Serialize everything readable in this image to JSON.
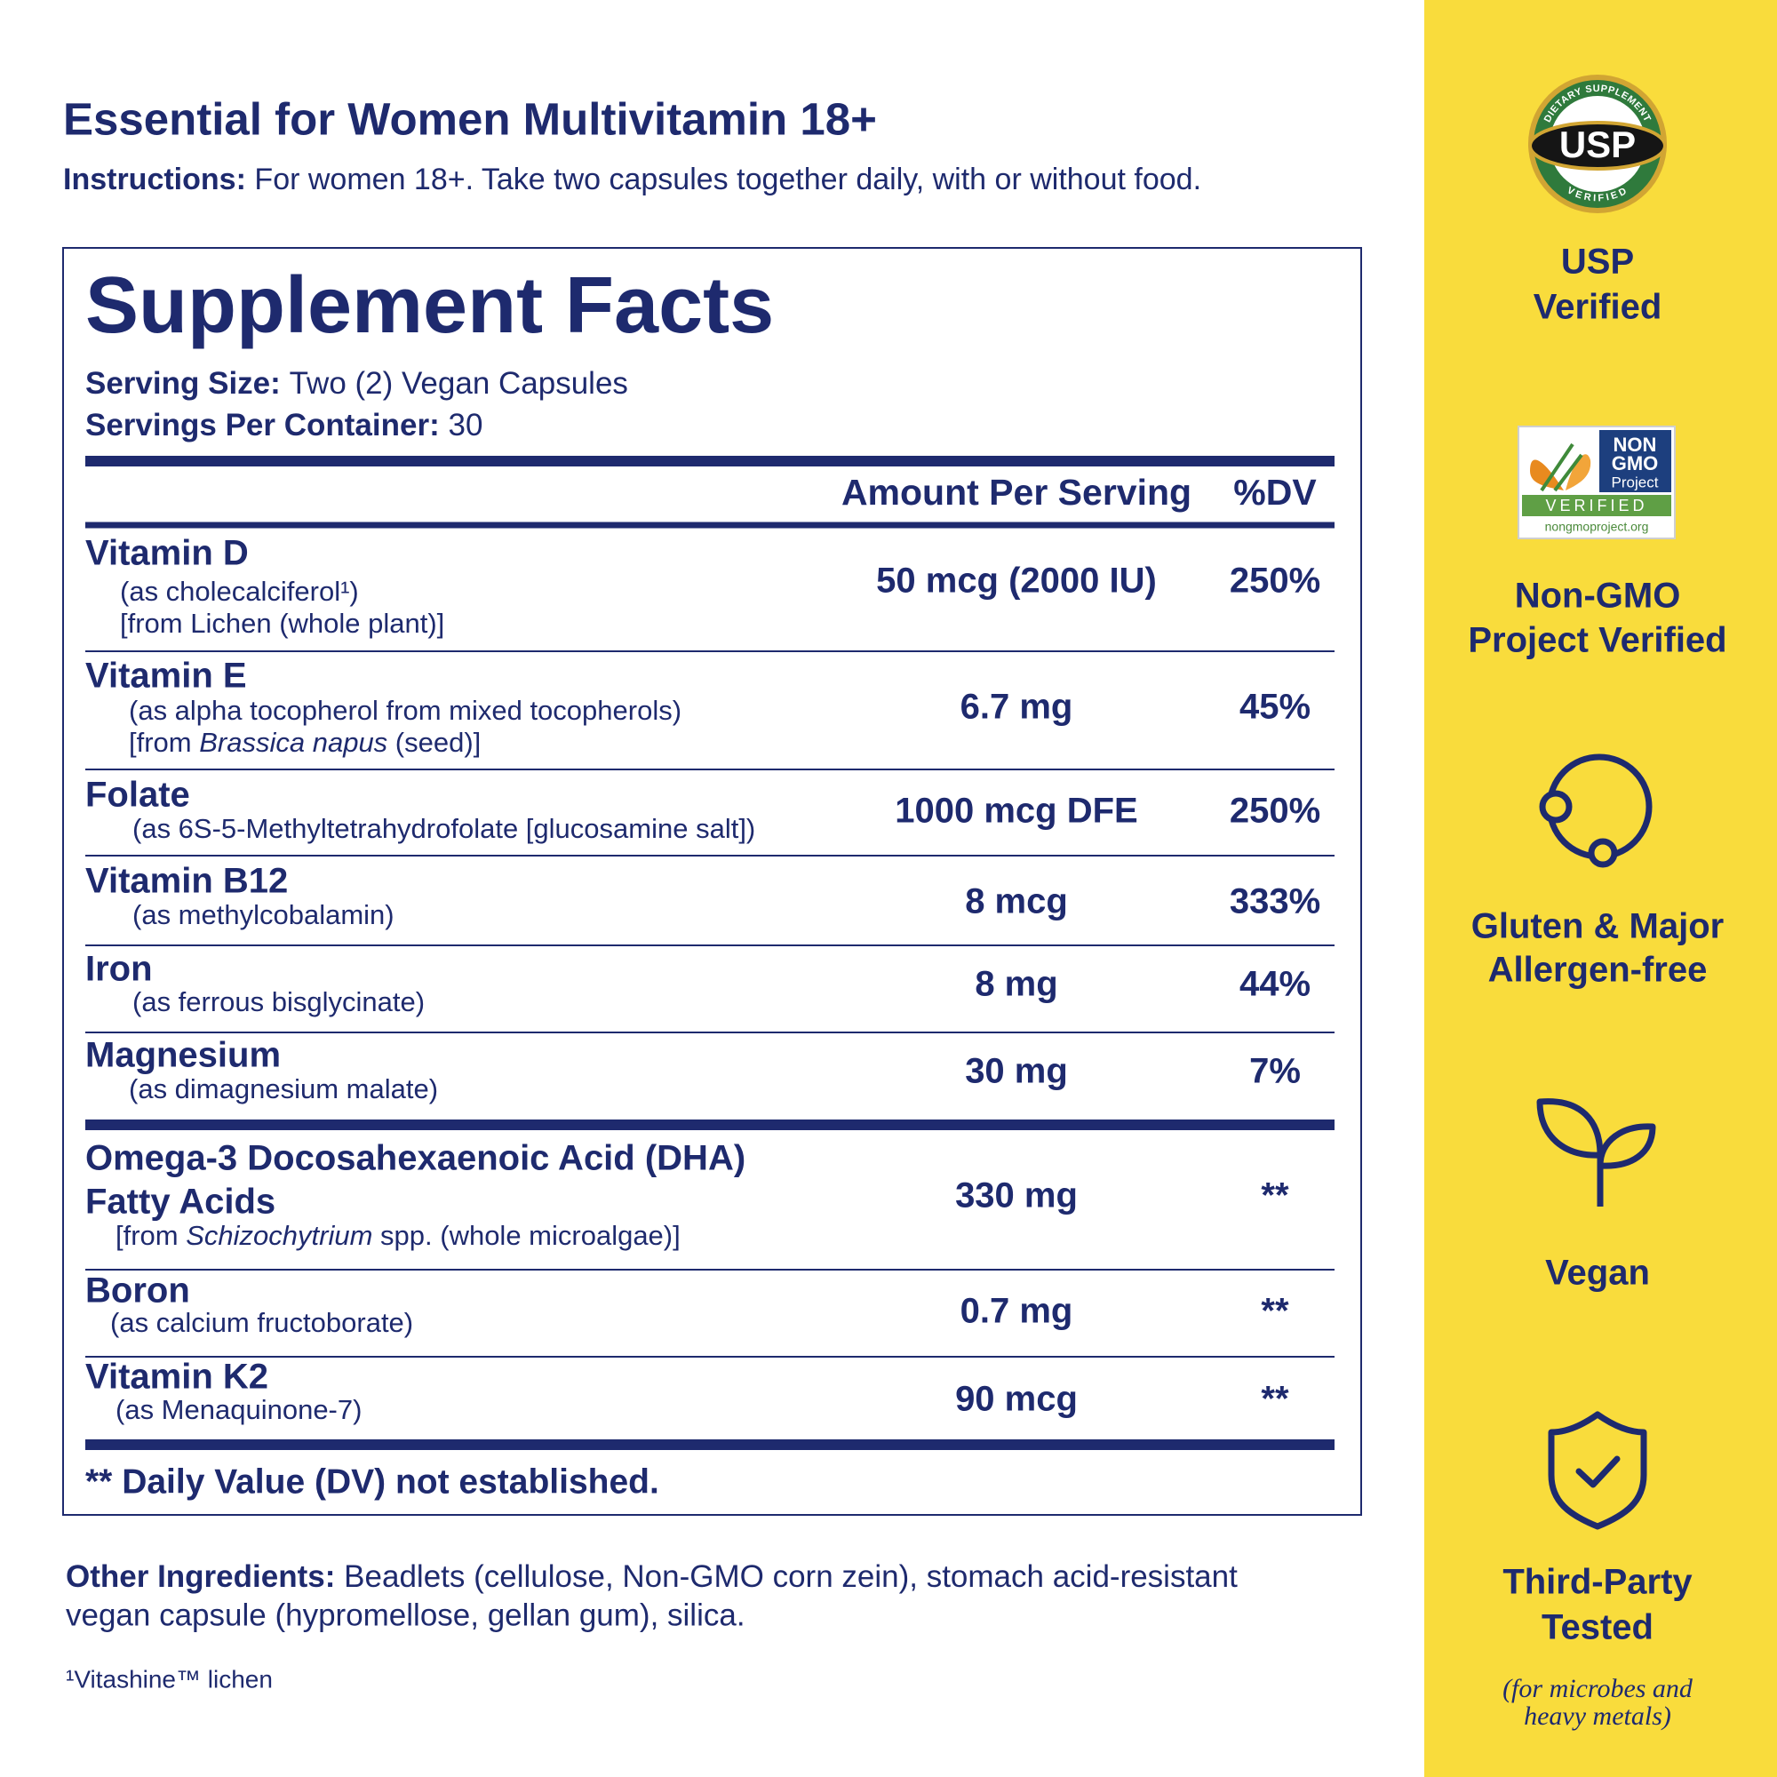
{
  "header": {
    "title": "Essential for Women Multivitamin 18+",
    "instructions_label": "Instructions:",
    "instructions": "For women 18+. Take two capsules together daily, with or without food."
  },
  "facts": {
    "title": "Supplement Facts",
    "serving_size_label": "Serving Size:",
    "serving_size": "Two (2) Vegan Capsules",
    "servings_label": "Servings Per Container:",
    "servings": "30",
    "columns": [
      "Amount Per Serving",
      "%DV"
    ],
    "rows": [
      {
        "name": [
          "Vitamin D"
        ],
        "details": [
          [
            "(as cholecalciferol¹)"
          ],
          [
            "[from Lichen (whole plant)]"
          ]
        ],
        "amount": "50 mcg (2000 IU)",
        "dv": "250%"
      },
      {
        "name": [
          "Vitamin E"
        ],
        "details": [
          [
            "(as alpha tocopherol from mixed tocopherols)"
          ],
          [
            "[from ",
            {
              "text": "Brassica napus",
              "italic": true
            },
            " (seed)]"
          ]
        ],
        "amount": "6.7 mg",
        "dv": "45%"
      },
      {
        "name": [
          "Folate"
        ],
        "details": [
          [
            "(as 6S-5-Methyltetrahydrofolate [glucosamine salt])"
          ]
        ],
        "amount": "1000 mcg DFE",
        "dv": "250%"
      },
      {
        "name": [
          "Vitamin B12"
        ],
        "details": [
          [
            "(as methylcobalamin)"
          ]
        ],
        "amount": "8 mcg",
        "dv": "333%"
      },
      {
        "name": [
          "Iron"
        ],
        "details": [
          [
            "(as ferrous bisglycinate)"
          ]
        ],
        "amount": "8 mg",
        "dv": "44%"
      },
      {
        "name": [
          "Magnesium"
        ],
        "details": [
          [
            "(as dimagnesium malate)"
          ]
        ],
        "amount": "30 mg",
        "dv": "7%"
      },
      {
        "name": [
          "Omega-3 Docosahexaenoic Acid (DHA)",
          "Fatty Acids"
        ],
        "details": [
          [
            "[from ",
            {
              "text": "Schizochytrium",
              "italic": true
            },
            " spp. (whole microalgae)]"
          ]
        ],
        "amount": "330 mg",
        "dv": "**"
      },
      {
        "name": [
          "Boron"
        ],
        "details": [
          [
            "(as calcium fructoborate)"
          ]
        ],
        "amount": "0.7 mg",
        "dv": "**"
      },
      {
        "name": [
          "Vitamin K2"
        ],
        "details": [
          [
            "(as Menaquinone-7)"
          ]
        ],
        "amount": "90 mcg",
        "dv": "**"
      }
    ],
    "footnote": "** Daily Value (DV) not established."
  },
  "other_ingredients": {
    "label": "Other Ingredients:",
    "lines": [
      "Beadlets (cellulose, Non-GMO corn zein), stomach acid-resistant",
      "vegan capsule (hypromellose, gellan gum), silica."
    ]
  },
  "note": "¹Vitashine™ lichen",
  "badges": [
    {
      "label": [
        "USP",
        "Verified"
      ],
      "logo": {
        "arc_top": "DIETARY SUPPLEMENT",
        "mark": "USP",
        "arc_bottom": "VERIFIED"
      }
    },
    {
      "label": [
        "Non-GMO",
        "Project Verified"
      ],
      "logo": {
        "mark": [
          "NON",
          "GMO",
          "Project"
        ],
        "verified": "VERIFIED",
        "url": "nongmoproject.org"
      }
    },
    {
      "label": [
        "Gluten & Major",
        "Allergen-free"
      ]
    },
    {
      "label": [
        "Vegan"
      ]
    },
    {
      "label": [
        "Third-Party",
        "Tested"
      ],
      "note": [
        "(for microbes and",
        "heavy metals)"
      ]
    }
  ]
}
